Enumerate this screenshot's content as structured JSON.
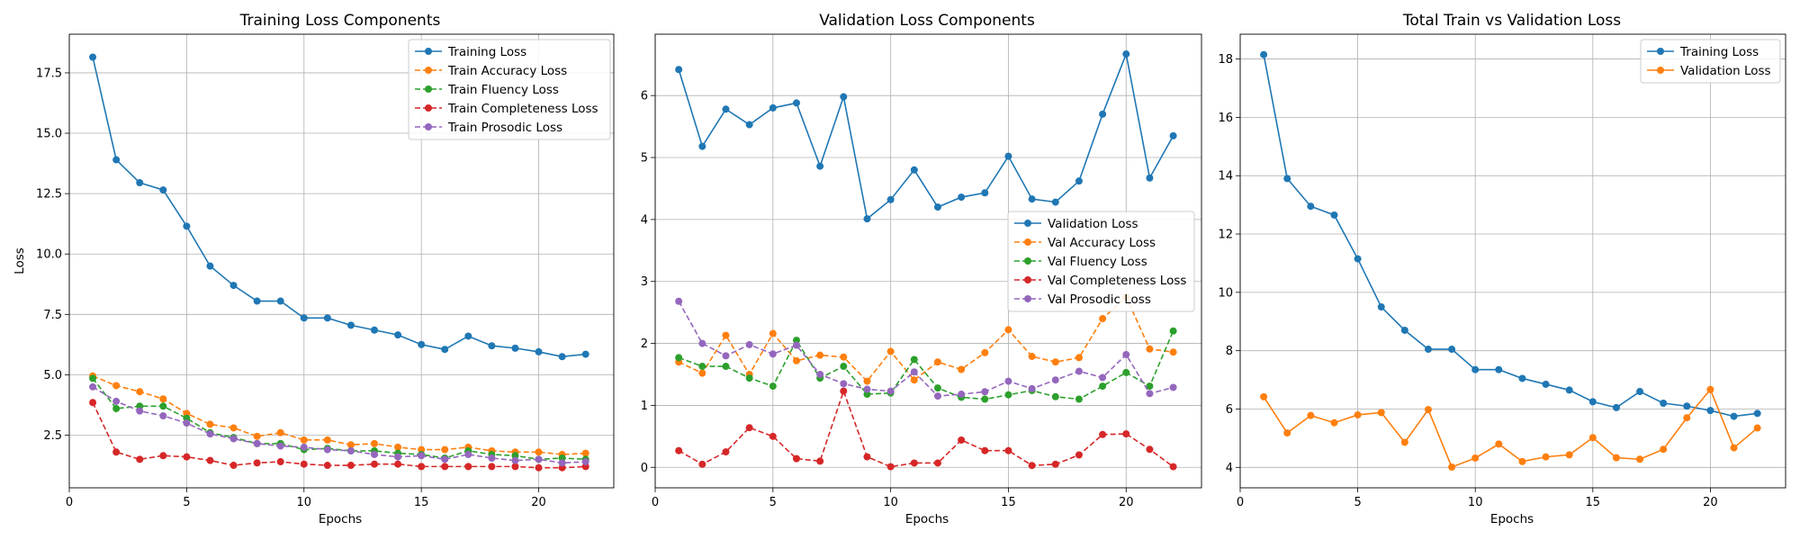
{
  "chart_data": [
    {
      "type": "line",
      "title": "Training Loss Components",
      "xlabel": "Epochs",
      "ylabel": "Loss",
      "xlim": [
        0,
        23.2
      ],
      "ylim": [
        0.32,
        19.1
      ],
      "xticks": [
        0,
        5,
        10,
        15,
        20
      ],
      "yticks": [
        2.5,
        5.0,
        7.5,
        10.0,
        12.5,
        15.0,
        17.5
      ],
      "ytick_labels": [
        "2.5",
        "5.0",
        "7.5",
        "10.0",
        "12.5",
        "15.0",
        "17.5"
      ],
      "grid": true,
      "legend_position": "upper right",
      "x": [
        1,
        2,
        3,
        4,
        5,
        6,
        7,
        8,
        9,
        10,
        11,
        12,
        13,
        14,
        15,
        16,
        17,
        18,
        19,
        20,
        21,
        22
      ],
      "series": [
        {
          "name": "Training Loss",
          "color": "#1f77b4",
          "linestyle": "solid",
          "values": [
            18.15,
            13.9,
            12.95,
            12.65,
            11.15,
            9.5,
            8.7,
            8.05,
            8.05,
            7.35,
            7.35,
            7.05,
            6.85,
            6.65,
            6.25,
            6.05,
            6.6,
            6.2,
            6.1,
            5.95,
            5.75,
            5.85
          ]
        },
        {
          "name": "Train Accuracy Loss",
          "color": "#ff7f0e",
          "linestyle": "dashed",
          "values": [
            4.95,
            4.55,
            4.3,
            4.0,
            3.4,
            2.95,
            2.8,
            2.45,
            2.6,
            2.3,
            2.3,
            2.1,
            2.15,
            2.0,
            1.9,
            1.9,
            2.0,
            1.85,
            1.8,
            1.8,
            1.7,
            1.75
          ]
        },
        {
          "name": "Train Fluency Loss",
          "color": "#2ca02c",
          "linestyle": "dashed",
          "values": [
            4.85,
            3.6,
            3.7,
            3.7,
            3.2,
            2.6,
            2.4,
            2.15,
            2.15,
            1.9,
            1.95,
            1.85,
            1.85,
            1.75,
            1.7,
            1.55,
            1.85,
            1.7,
            1.65,
            1.5,
            1.55,
            1.5
          ]
        },
        {
          "name": "Train Completeness Loss",
          "color": "#d62728",
          "linestyle": "dashed",
          "values": [
            3.85,
            1.8,
            1.5,
            1.65,
            1.6,
            1.45,
            1.25,
            1.35,
            1.4,
            1.3,
            1.25,
            1.25,
            1.3,
            1.3,
            1.2,
            1.2,
            1.2,
            1.2,
            1.2,
            1.15,
            1.15,
            1.2
          ]
        },
        {
          "name": "Train Prosodic Loss",
          "color": "#9467bd",
          "linestyle": "dashed",
          "values": [
            4.5,
            3.9,
            3.5,
            3.3,
            3.0,
            2.55,
            2.35,
            2.15,
            2.05,
            2.0,
            1.9,
            1.85,
            1.7,
            1.6,
            1.65,
            1.5,
            1.7,
            1.55,
            1.45,
            1.5,
            1.35,
            1.4
          ]
        }
      ]
    },
    {
      "type": "line",
      "title": "Validation Loss Components",
      "xlabel": "Epochs",
      "ylabel": "",
      "xlim": [
        0,
        23.2
      ],
      "ylim": [
        -0.33,
        6.99
      ],
      "xticks": [
        0,
        5,
        10,
        15,
        20
      ],
      "yticks": [
        0,
        1,
        2,
        3,
        4,
        5,
        6
      ],
      "ytick_labels": [
        "0",
        "1",
        "2",
        "3",
        "4",
        "5",
        "6"
      ],
      "grid": true,
      "legend_position": "center right",
      "x": [
        1,
        2,
        3,
        4,
        5,
        6,
        7,
        8,
        9,
        10,
        11,
        12,
        13,
        14,
        15,
        16,
        17,
        18,
        19,
        20,
        21,
        22
      ],
      "series": [
        {
          "name": "Validation Loss",
          "color": "#1f77b4",
          "linestyle": "solid",
          "values": [
            6.42,
            5.18,
            5.78,
            5.53,
            5.8,
            5.88,
            4.86,
            5.98,
            4.01,
            4.32,
            4.8,
            4.2,
            4.36,
            4.43,
            5.02,
            4.33,
            4.28,
            4.62,
            5.7,
            6.67,
            4.67,
            5.35
          ]
        },
        {
          "name": "Val Accuracy Loss",
          "color": "#ff7f0e",
          "linestyle": "dashed",
          "values": [
            1.7,
            1.52,
            2.13,
            1.5,
            2.16,
            1.72,
            1.81,
            1.78,
            1.39,
            1.87,
            1.41,
            1.7,
            1.58,
            1.85,
            2.22,
            1.79,
            1.7,
            1.77,
            2.4,
            2.75,
            1.91,
            1.86
          ]
        },
        {
          "name": "Val Fluency Loss",
          "color": "#2ca02c",
          "linestyle": "dashed",
          "values": [
            1.77,
            1.63,
            1.63,
            1.44,
            1.31,
            2.05,
            1.44,
            1.63,
            1.18,
            1.2,
            1.74,
            1.28,
            1.13,
            1.1,
            1.17,
            1.24,
            1.14,
            1.1,
            1.31,
            1.53,
            1.31,
            2.2
          ]
        },
        {
          "name": "Val Completeness Loss",
          "color": "#d62728",
          "linestyle": "dashed",
          "values": [
            0.27,
            0.05,
            0.25,
            0.64,
            0.5,
            0.14,
            0.1,
            1.23,
            0.17,
            0.01,
            0.07,
            0.07,
            0.44,
            0.27,
            0.27,
            0.03,
            0.05,
            0.2,
            0.53,
            0.54,
            0.29,
            0.01
          ]
        },
        {
          "name": "Val Prosodic Loss",
          "color": "#9467bd",
          "linestyle": "dashed",
          "values": [
            2.68,
            2.0,
            1.8,
            1.98,
            1.83,
            1.97,
            1.5,
            1.35,
            1.26,
            1.23,
            1.54,
            1.15,
            1.18,
            1.22,
            1.39,
            1.27,
            1.41,
            1.55,
            1.45,
            1.82,
            1.19,
            1.29
          ]
        }
      ]
    },
    {
      "type": "line",
      "title": "Total Train vs Validation Loss",
      "xlabel": "Epochs",
      "ylabel": "",
      "xlim": [
        0,
        23.2
      ],
      "ylim": [
        3.3,
        18.85
      ],
      "xticks": [
        0,
        5,
        10,
        15,
        20
      ],
      "yticks": [
        4,
        6,
        8,
        10,
        12,
        14,
        16,
        18
      ],
      "ytick_labels": [
        "4",
        "6",
        "8",
        "10",
        "12",
        "14",
        "16",
        "18"
      ],
      "grid": true,
      "legend_position": "upper right",
      "x": [
        1,
        2,
        3,
        4,
        5,
        6,
        7,
        8,
        9,
        10,
        11,
        12,
        13,
        14,
        15,
        16,
        17,
        18,
        19,
        20,
        21,
        22
      ],
      "series": [
        {
          "name": "Training Loss",
          "color": "#1f77b4",
          "linestyle": "solid",
          "values": [
            18.15,
            13.9,
            12.95,
            12.65,
            11.15,
            9.5,
            8.7,
            8.05,
            8.05,
            7.35,
            7.35,
            7.05,
            6.85,
            6.65,
            6.25,
            6.05,
            6.6,
            6.2,
            6.1,
            5.95,
            5.75,
            5.85
          ]
        },
        {
          "name": "Validation Loss",
          "color": "#ff7f0e",
          "linestyle": "solid",
          "values": [
            6.42,
            5.18,
            5.78,
            5.53,
            5.8,
            5.88,
            4.86,
            5.98,
            4.01,
            4.32,
            4.8,
            4.2,
            4.36,
            4.43,
            5.02,
            4.33,
            4.28,
            4.62,
            5.7,
            6.67,
            4.67,
            5.35
          ]
        }
      ]
    }
  ]
}
